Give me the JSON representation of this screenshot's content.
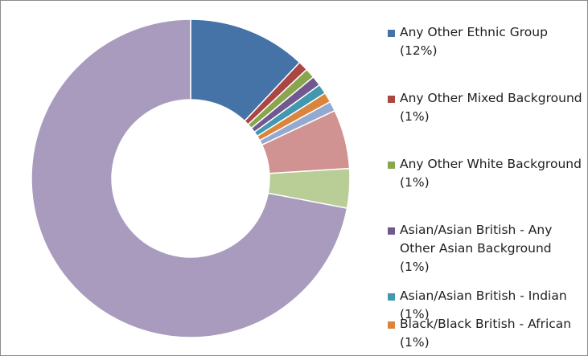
{
  "chart_data": {
    "type": "pie",
    "variant": "donut",
    "legend_position": "right",
    "slices": [
      {
        "label": "Any Other Ethnic Group (12%)",
        "value": 12,
        "color": "#4572A7"
      },
      {
        "label": "Any Other Mixed Background (1%)",
        "value": 1,
        "color": "#AA4643"
      },
      {
        "label": "Any Other White Background (1%)",
        "value": 1,
        "color": "#89A54E"
      },
      {
        "label": "Asian/Asian British - Any Other Asian Background (1%)",
        "value": 1,
        "color": "#71588F"
      },
      {
        "label": "Asian/Asian British - Indian (1%)",
        "value": 1,
        "color": "#4198AF"
      },
      {
        "label": "Black/Black British - African (1%)",
        "value": 1,
        "color": "#DB843D"
      },
      {
        "label": "",
        "value": 1,
        "color": "#93A9CF"
      },
      {
        "label": "",
        "value": 6,
        "color": "#D19392"
      },
      {
        "label": "",
        "value": 4,
        "color": "#B9CD96"
      },
      {
        "label": "",
        "value": 72,
        "color": "#A99BBD"
      }
    ]
  }
}
